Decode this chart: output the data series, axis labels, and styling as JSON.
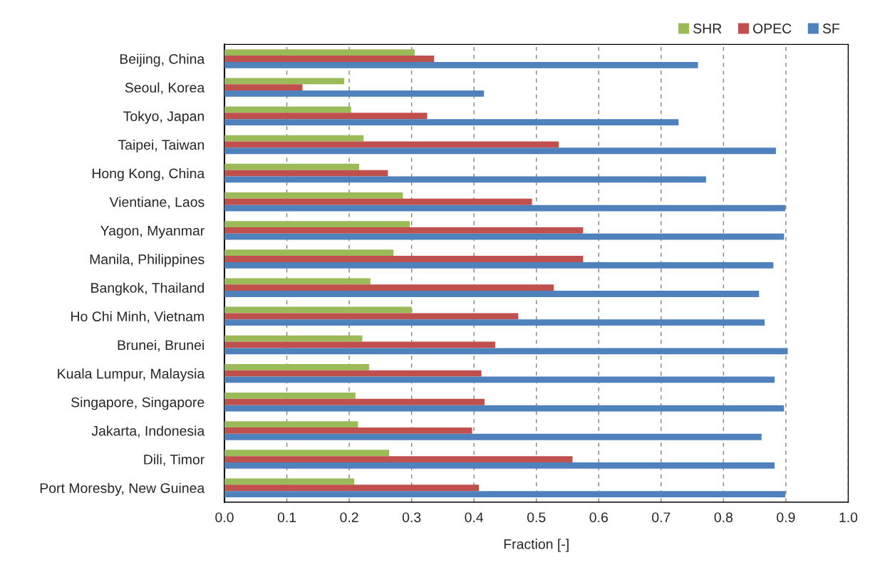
{
  "chart_data": {
    "type": "bar",
    "orientation": "horizontal",
    "xlabel": "Fraction [-]",
    "categories": [
      "Beijing, China",
      "Seoul, Korea",
      "Tokyo, Japan",
      "Taipei, Taiwan",
      "Hong Kong, China",
      "Vientiane, Laos",
      "Yagon, Myanmar",
      "Manila, Philippines",
      "Bangkok, Thailand",
      "Ho Chi Minh, Vietnam",
      "Brunei, Brunei",
      "Kuala Lumpur, Malaysia",
      "Singapore, Singapore",
      "Jakarta, Indonesia",
      "Dili, Timor",
      "Port Moresby, New Guinea"
    ],
    "series": [
      {
        "name": "SHR",
        "color": "#9bbb59",
        "values": [
          0.305,
          0.192,
          0.203,
          0.223,
          0.216,
          0.286,
          0.297,
          0.271,
          0.234,
          0.3,
          0.221,
          0.232,
          0.21,
          0.214,
          0.264,
          0.208
        ]
      },
      {
        "name": "OPEC",
        "color": "#c0504d",
        "values": [
          0.336,
          0.125,
          0.325,
          0.536,
          0.262,
          0.493,
          0.575,
          0.575,
          0.528,
          0.471,
          0.434,
          0.412,
          0.417,
          0.397,
          0.558,
          0.408
        ]
      },
      {
        "name": "SF",
        "color": "#4f81bd",
        "values": [
          0.759,
          0.416,
          0.728,
          0.884,
          0.772,
          0.899,
          0.897,
          0.88,
          0.857,
          0.866,
          0.903,
          0.882,
          0.897,
          0.861,
          0.882,
          0.899
        ]
      }
    ],
    "xlim": [
      0,
      1
    ],
    "xticks": [
      {
        "value": 0,
        "label": "0.0"
      },
      {
        "value": 0.1,
        "label": "0.1"
      },
      {
        "value": 0.2,
        "label": "0.2"
      },
      {
        "value": 0.3,
        "label": "0.3"
      },
      {
        "value": 0.4,
        "label": "0.4"
      },
      {
        "value": 0.5,
        "label": "0.5"
      },
      {
        "value": 0.6,
        "label": "0.6"
      },
      {
        "value": 0.7,
        "label": "0.7"
      },
      {
        "value": 0.8,
        "label": "0.8"
      },
      {
        "value": 0.9,
        "label": "0.9"
      },
      {
        "value": 1.0,
        "label": "1.0"
      }
    ],
    "grid": "x",
    "legend": "top right"
  }
}
